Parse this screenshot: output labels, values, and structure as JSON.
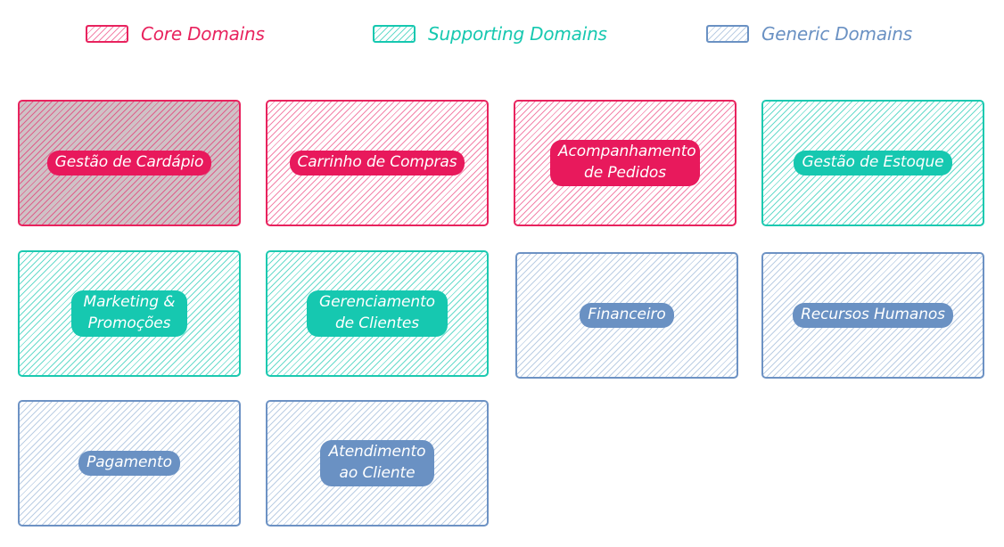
{
  "legend": {
    "core": {
      "label": "Core Domains",
      "color": "#e8235e"
    },
    "supporting": {
      "label": "Supporting Domains",
      "color": "#16c8b0"
    },
    "generic": {
      "label": "Generic Domains",
      "color": "#6a91c3"
    }
  },
  "domains": [
    {
      "label": "Gestão de Cardápio",
      "type": "core"
    },
    {
      "label": "Carrinho de Compras",
      "type": "core"
    },
    {
      "label": "Acompanhamento de Pedidos",
      "type": "core"
    },
    {
      "label": "Gestão de Estoque",
      "type": "supporting"
    },
    {
      "label": "Marketing & Promoções",
      "type": "supporting"
    },
    {
      "label": "Gerenciamento de Clientes",
      "type": "supporting"
    },
    {
      "label": "Financeiro",
      "type": "generic"
    },
    {
      "label": "Recursos Humanos",
      "type": "generic"
    },
    {
      "label": "Pagamento",
      "type": "generic"
    },
    {
      "label": "Atendimento ao Cliente",
      "type": "generic"
    }
  ]
}
